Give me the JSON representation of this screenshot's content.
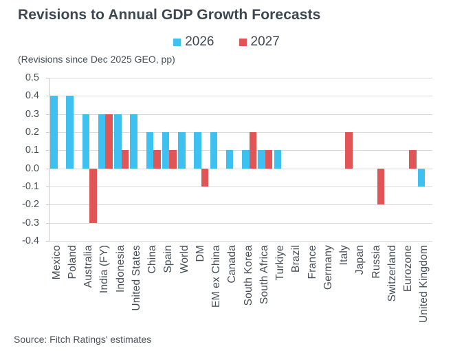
{
  "title": "Revisions to Annual GDP Growth Forecasts",
  "subtitle": "(Revisions since Dec 2025 GEO, pp)",
  "source": "Source: Fitch Ratings' estimates",
  "colors": {
    "series_2026": "#3ec1f0",
    "series_2027": "#e15557",
    "title_text": "#3e4750",
    "axis_text": "#454e57",
    "gridline": "#d9d9d9",
    "axis_line": "#c8c8c8",
    "background": "#ffffff"
  },
  "chart_data": {
    "type": "bar",
    "title": "Revisions to Annual GDP Growth Forecasts",
    "subtitle": "(Revisions since Dec 2025 GEO, pp)",
    "categories": [
      "Mexico",
      "Poland",
      "Australia",
      "India (FY)",
      "Indonesia",
      "United States",
      "China",
      "Spain",
      "World",
      "DM",
      "EM ex China",
      "Canada",
      "South Korea",
      "South Africa",
      "Turkiye",
      "Brazil",
      "France",
      "Germany",
      "Italy",
      "Japan",
      "Russia",
      "Switzerland",
      "Eurozone",
      "United Kingdom"
    ],
    "series": [
      {
        "name": "2026",
        "color": "#3ec1f0",
        "values": [
          0.4,
          0.4,
          0.3,
          0.3,
          0.3,
          0.3,
          0.2,
          0.2,
          0.2,
          0.2,
          0.2,
          0.1,
          0.1,
          0.1,
          0.1,
          null,
          null,
          null,
          null,
          null,
          null,
          null,
          null,
          -0.1
        ]
      },
      {
        "name": "2027",
        "color": "#e15557",
        "values": [
          null,
          null,
          -0.3,
          0.3,
          0.1,
          null,
          0.1,
          0.1,
          null,
          -0.1,
          null,
          null,
          0.2,
          0.1,
          null,
          null,
          null,
          null,
          0.2,
          null,
          -0.2,
          null,
          0.1,
          null
        ]
      }
    ],
    "xlabel": "",
    "ylabel": "",
    "ylim": [
      -0.4,
      0.5
    ],
    "ytick_step": 0.1,
    "yticks": [
      "0.5",
      "0.4",
      "0.3",
      "0.2",
      "0.1",
      "0.0",
      "-0.1",
      "-0.2",
      "-0.3",
      "-0.4"
    ],
    "grid": true,
    "legend_position": "top-center",
    "bar_orientation": "vertical",
    "x_label_rotation": -90
  }
}
